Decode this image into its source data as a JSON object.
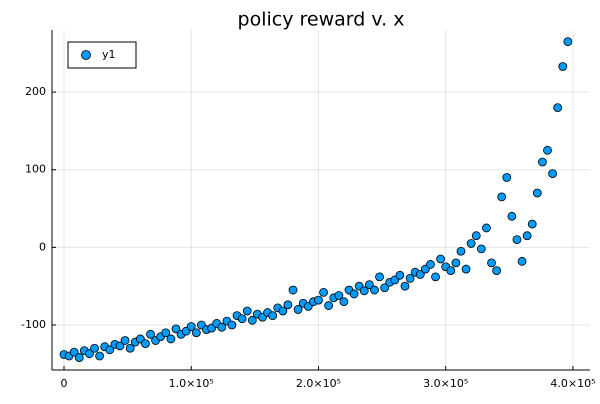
{
  "chart_data": {
    "type": "scatter",
    "title": "policy reward v. x",
    "x": [
      0,
      4000,
      8000,
      12000,
      16000,
      20000,
      24000,
      28000,
      32000,
      36000,
      40000,
      44000,
      48000,
      52000,
      56000,
      60000,
      64000,
      68000,
      72000,
      76000,
      80000,
      84000,
      88000,
      92000,
      96000,
      100000,
      104000,
      108000,
      112000,
      116000,
      120000,
      124000,
      128000,
      132000,
      136000,
      140000,
      144000,
      148000,
      152000,
      156000,
      160000,
      164000,
      168000,
      172000,
      176000,
      180000,
      184000,
      188000,
      192000,
      196000,
      200000,
      204000,
      208000,
      212000,
      216000,
      220000,
      224000,
      228000,
      232000,
      236000,
      240000,
      244000,
      248000,
      252000,
      256000,
      260000,
      264000,
      268000,
      272000,
      276000,
      280000,
      284000,
      288000,
      292000,
      296000,
      300000,
      304000,
      308000,
      312000,
      316000,
      320000,
      324000,
      328000,
      332000,
      336000,
      340000,
      344000,
      348000,
      352000,
      356000,
      360000,
      364000,
      368000,
      372000,
      376000,
      380000,
      384000,
      388000,
      392000,
      396000
    ],
    "series": [
      {
        "name": "y1",
        "color": "#009af9",
        "values": [
          -138,
          -140,
          -135,
          -142,
          -133,
          -137,
          -130,
          -140,
          -128,
          -132,
          -125,
          -127,
          -120,
          -130,
          -122,
          -118,
          -124,
          -112,
          -120,
          -115,
          -110,
          -118,
          -105,
          -112,
          -108,
          -102,
          -110,
          -100,
          -106,
          -104,
          -98,
          -103,
          -95,
          -100,
          -88,
          -92,
          -82,
          -94,
          -86,
          -90,
          -84,
          -88,
          -78,
          -82,
          -74,
          -55,
          -80,
          -72,
          -76,
          -70,
          -68,
          -58,
          -75,
          -65,
          -62,
          -70,
          -55,
          -60,
          -50,
          -56,
          -48,
          -55,
          -38,
          -52,
          -45,
          -42,
          -36,
          -50,
          -40,
          -32,
          -35,
          -28,
          -22,
          -38,
          -15,
          -25,
          -30,
          -20,
          -5,
          -28,
          5,
          15,
          -2,
          25,
          -20,
          -30,
          65,
          90,
          40,
          10,
          -18,
          15,
          30,
          70,
          110,
          125,
          95,
          180,
          233,
          265
        ]
      }
    ],
    "xlim": [
      -9430,
      413400
    ],
    "ylim": [
      -158,
      280
    ],
    "xticks": [
      0,
      {
        "value": 100000,
        "label": "1.0×10⁵"
      },
      {
        "value": 200000,
        "label": "2.0×10⁵"
      },
      {
        "value": 300000,
        "label": "3.0×10⁵"
      },
      {
        "value": 400000,
        "label": "4.0×10⁵"
      }
    ],
    "yticks": [
      -100,
      0,
      100,
      200
    ],
    "grid": true,
    "legend": "top-left"
  }
}
